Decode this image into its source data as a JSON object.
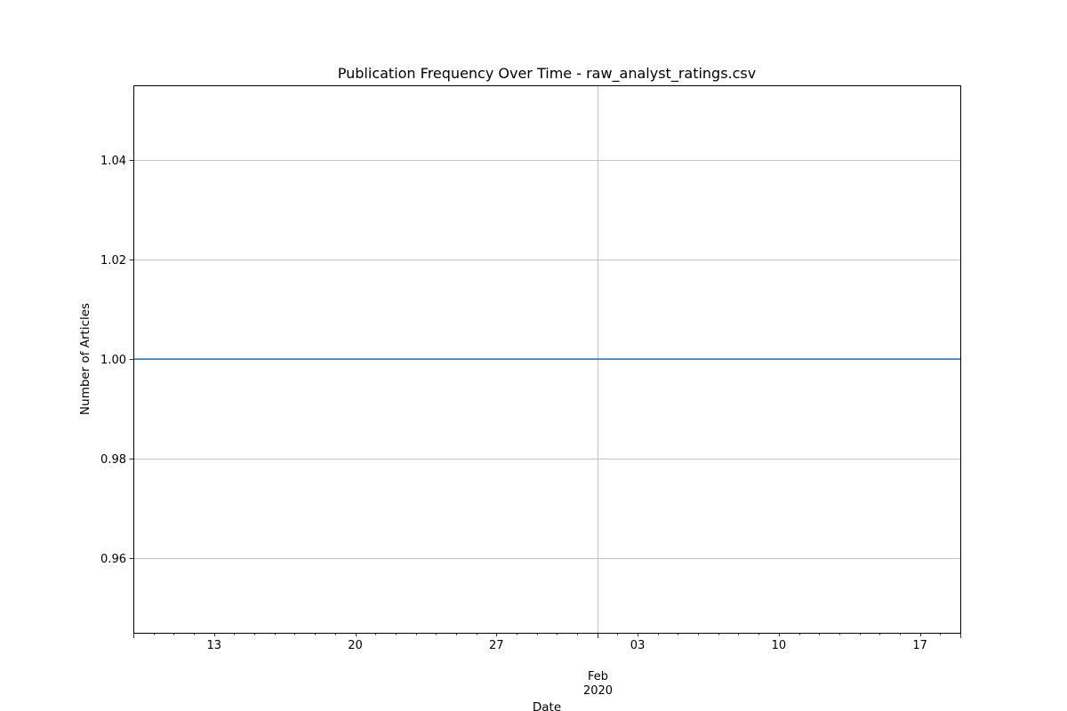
{
  "chart_data": {
    "type": "line",
    "title": "Publication Frequency Over Time - raw_analyst_ratings.csv",
    "xlabel": "Date",
    "ylabel": "Number of Articles",
    "x_axis": {
      "kind": "date",
      "range": [
        "2020-01-09",
        "2020-02-19"
      ],
      "major_ticks": [
        {
          "date": "2020-02-01",
          "label": "Feb",
          "sublabel": "2020"
        }
      ],
      "minor_ticks": [
        {
          "date": "2020-01-13",
          "label": "13"
        },
        {
          "date": "2020-01-20",
          "label": "20"
        },
        {
          "date": "2020-01-27",
          "label": "27"
        },
        {
          "date": "2020-02-03",
          "label": "03"
        },
        {
          "date": "2020-02-10",
          "label": "10"
        },
        {
          "date": "2020-02-17",
          "label": "17"
        }
      ]
    },
    "y_axis": {
      "range": [
        0.945,
        1.055
      ],
      "ticks": [
        0.96,
        0.98,
        1.0,
        1.02,
        1.04
      ],
      "tick_labels": [
        "0.96",
        "0.98",
        "1.00",
        "1.02",
        "1.04"
      ]
    },
    "grid": true,
    "series": [
      {
        "color": "#1f77b4",
        "points": [
          {
            "x": "2020-01-09",
            "y": 1
          },
          {
            "x": "2020-02-19",
            "y": 1
          }
        ]
      }
    ]
  }
}
